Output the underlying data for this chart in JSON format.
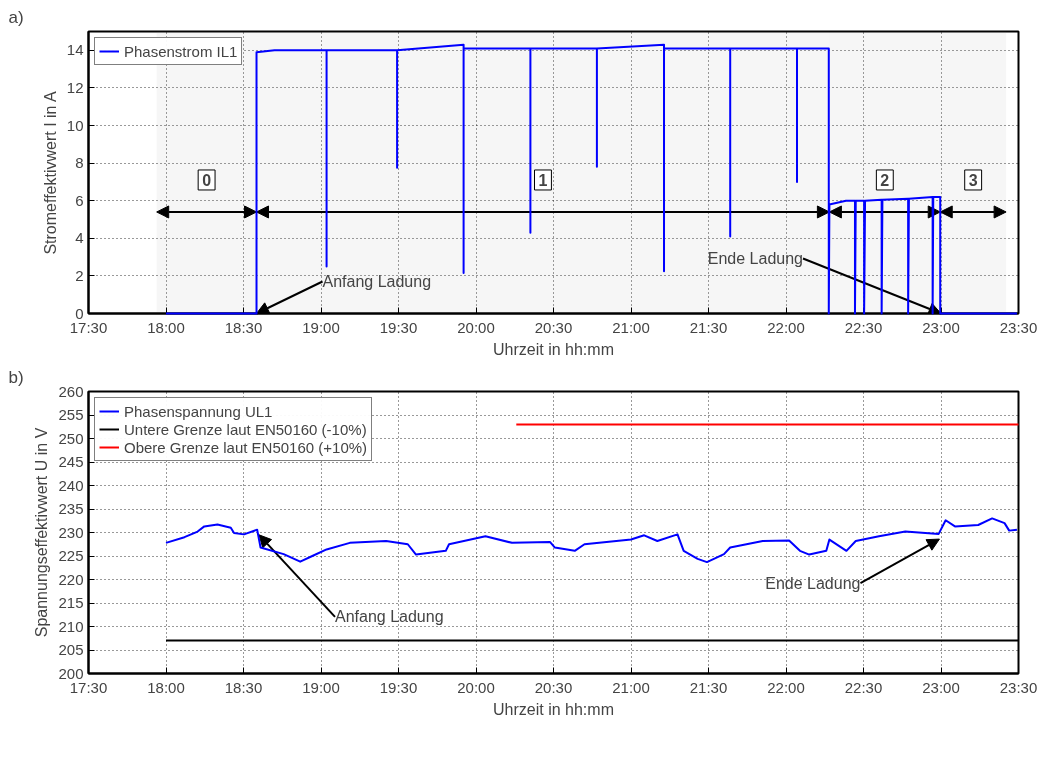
{
  "chart_data": [
    {
      "type": "line",
      "title": "a)",
      "xlabel": "Uhrzeit in hh:mm",
      "ylabel": "Stromeffektivwert I in A",
      "xlim": [
        17.5,
        23.5
      ],
      "xticks": [
        {
          "value": 17.5,
          "label": "17:30"
        },
        {
          "value": 18.0,
          "label": "18:00"
        },
        {
          "value": 18.5,
          "label": "18:30"
        },
        {
          "value": 19.0,
          "label": "19:00"
        },
        {
          "value": 19.5,
          "label": "19:30"
        },
        {
          "value": 20.0,
          "label": "20:00"
        },
        {
          "value": 20.5,
          "label": "20:30"
        },
        {
          "value": 21.0,
          "label": "21:00"
        },
        {
          "value": 21.5,
          "label": "21:30"
        },
        {
          "value": 22.0,
          "label": "22:00"
        },
        {
          "value": 22.5,
          "label": "22:30"
        },
        {
          "value": 23.0,
          "label": "23:00"
        },
        {
          "value": 23.5,
          "label": "23:30"
        }
      ],
      "ylim": [
        0,
        15
      ],
      "yticks": [
        0,
        2,
        4,
        6,
        8,
        10,
        12,
        14
      ],
      "grid": true,
      "legend": "top left",
      "series": [
        {
          "name": "Phasenstrom IL1",
          "color": "#0000ff",
          "x": [
            18.0,
            18.584,
            18.584,
            18.7,
            19.036,
            19.036,
            19.036,
            19.491,
            19.491,
            19.491,
            19.92,
            19.92,
            19.92,
            20.351,
            20.351,
            20.351,
            20.78,
            20.78,
            20.78,
            21.213,
            21.213,
            21.213,
            21.64,
            21.64,
            21.64,
            22.071,
            22.071,
            22.071,
            22.276,
            22.276,
            22.28,
            22.387,
            22.445,
            22.445,
            22.45,
            22.504,
            22.504,
            22.51,
            22.617,
            22.617,
            22.622,
            22.788,
            22.788,
            22.793,
            22.946,
            22.946,
            22.95,
            22.995,
            22.995,
            23.49
          ],
          "values": [
            0,
            0,
            13.9,
            14.0,
            14.0,
            2.5,
            14.0,
            14.0,
            7.75,
            14.0,
            14.3,
            2.15,
            14.1,
            14.1,
            4.3,
            14.1,
            14.1,
            7.8,
            14.1,
            14.3,
            2.25,
            14.1,
            14.1,
            4.1,
            14.1,
            14.1,
            7.0,
            14.1,
            14.1,
            0,
            5.8,
            6.0,
            6.0,
            0,
            6.0,
            6.0,
            0,
            6.0,
            6.05,
            0,
            6.05,
            6.1,
            0,
            6.1,
            6.2,
            0,
            6.2,
            6.2,
            0,
            0
          ]
        }
      ],
      "bands": [
        {
          "axis": "x",
          "from": 17.94,
          "to": 18.584,
          "label": "0"
        },
        {
          "axis": "x",
          "from": 18.584,
          "to": 22.28,
          "label": "1"
        },
        {
          "axis": "x",
          "from": 22.28,
          "to": 22.995,
          "label": "2"
        },
        {
          "axis": "x",
          "from": 22.995,
          "to": 23.42,
          "label": "3"
        }
      ],
      "annotations": [
        {
          "text": "Anfang Ladung",
          "x": 18.584,
          "y": 0
        },
        {
          "text": "Ende Ladung",
          "x": 23.0,
          "y": 0
        }
      ]
    },
    {
      "type": "line",
      "title": "b)",
      "xlabel": "Uhrzeit in hh:mm",
      "ylabel": "Spannungseffektivwert U in V",
      "xlim": [
        17.5,
        23.5
      ],
      "xticks": [
        {
          "value": 17.5,
          "label": "17:30"
        },
        {
          "value": 18.0,
          "label": "18:00"
        },
        {
          "value": 18.5,
          "label": "18:30"
        },
        {
          "value": 19.0,
          "label": "19:00"
        },
        {
          "value": 19.5,
          "label": "19:30"
        },
        {
          "value": 20.0,
          "label": "20:00"
        },
        {
          "value": 20.5,
          "label": "20:30"
        },
        {
          "value": 21.0,
          "label": "21:00"
        },
        {
          "value": 21.5,
          "label": "21:30"
        },
        {
          "value": 22.0,
          "label": "22:00"
        },
        {
          "value": 22.5,
          "label": "22:30"
        },
        {
          "value": 23.0,
          "label": "23:00"
        },
        {
          "value": 23.5,
          "label": "23:30"
        }
      ],
      "ylim": [
        200,
        260
      ],
      "yticks": [
        200,
        205,
        210,
        215,
        220,
        225,
        230,
        235,
        240,
        245,
        250,
        255,
        260
      ],
      "grid": true,
      "legend": "top left",
      "series": [
        {
          "name": "Phasenspannung UL1",
          "color": "#0000ff",
          "x": [
            18.0,
            18.119,
            18.204,
            18.247,
            18.332,
            18.418,
            18.439,
            18.503,
            18.588,
            18.61,
            18.759,
            18.866,
            18.951,
            19.036,
            19.186,
            19.42,
            19.56,
            19.613,
            19.805,
            19.826,
            20.061,
            20.232,
            20.477,
            20.509,
            20.637,
            20.7,
            21.0,
            21.085,
            21.17,
            21.3,
            21.34,
            21.43,
            21.49,
            21.6,
            21.64,
            21.85,
            22.02,
            22.09,
            22.15,
            22.26,
            22.28,
            22.39,
            22.45,
            22.6,
            22.77,
            22.985,
            23.03,
            23.09,
            23.24,
            23.33,
            23.41,
            23.44,
            23.49
          ],
          "values": [
            227.8,
            229.0,
            230.2,
            231.3,
            231.7,
            231.0,
            229.9,
            229.6,
            230.6,
            226.8,
            225.4,
            223.8,
            225.1,
            226.4,
            227.8,
            228.2,
            227.5,
            225.3,
            226.1,
            227.5,
            229.2,
            227.8,
            228.0,
            226.8,
            226.1,
            227.5,
            228.5,
            229.4,
            228.2,
            229.6,
            226.1,
            224.4,
            223.7,
            225.4,
            226.8,
            228.2,
            228.3,
            226.1,
            225.3,
            226.1,
            228.5,
            226.1,
            228.2,
            229.2,
            230.2,
            229.7,
            232.6,
            231.3,
            231.6,
            233.0,
            232.0,
            230.4,
            230.6
          ]
        },
        {
          "name": "Untere Grenze laut EN50160 (-10%)",
          "color": "#000000",
          "x": [
            18.0,
            23.5
          ],
          "values": [
            207,
            207
          ]
        },
        {
          "name": "Obere Grenze laut EN50160 (+10%)",
          "color": "#ff0000",
          "x": [
            20.26,
            23.5
          ],
          "values": [
            253,
            253
          ]
        }
      ],
      "annotations": [
        {
          "text": "Anfang Ladung",
          "x": 18.6,
          "y": 229.5
        },
        {
          "text": "Ende Ladung",
          "x": 22.99,
          "y": 228.6
        }
      ]
    }
  ]
}
